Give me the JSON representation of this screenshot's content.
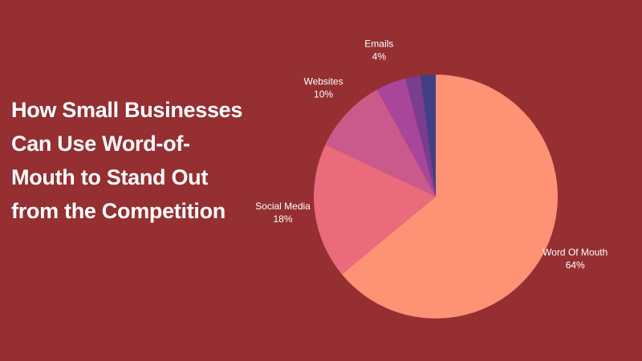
{
  "chart_data": {
    "type": "pie",
    "title": "How Small Businesses Can Use Word-of-Mouth to Stand Out from the Competition",
    "categories": [
      "Word Of Mouth",
      "Social Media",
      "Websites",
      "Emails",
      null,
      null
    ],
    "values": [
      64,
      18,
      10,
      4,
      2,
      2
    ],
    "value_labels": [
      "64%",
      "18%",
      "10%",
      "4%",
      null,
      null
    ],
    "colors": [
      "#fe9274",
      "#e96b7c",
      "#cb5a8c",
      "#a8479a",
      "#7a3d8f",
      "#433f84"
    ]
  }
}
